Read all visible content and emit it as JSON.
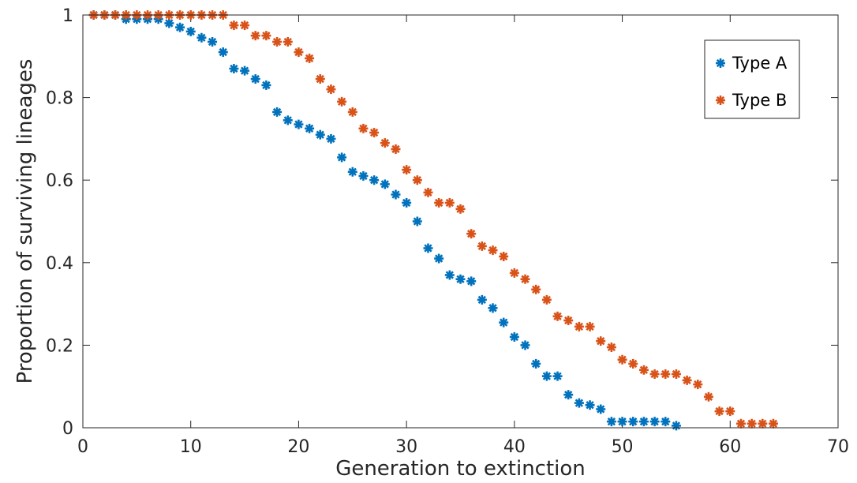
{
  "chart_data": {
    "type": "scatter",
    "title": "",
    "xlabel": "Generation to extinction",
    "ylabel": "Proportion of surviving lineages",
    "xlim": [
      0,
      70
    ],
    "ylim": [
      0,
      1
    ],
    "xticks": [
      0,
      10,
      20,
      30,
      40,
      50,
      60,
      70
    ],
    "xtick_labels": [
      "0",
      "10",
      "20",
      "30",
      "40",
      "50",
      "60",
      "70"
    ],
    "yticks": [
      0,
      0.2,
      0.4,
      0.6,
      0.8,
      1
    ],
    "ytick_labels": [
      "0",
      "0.2",
      "0.4",
      "0.6",
      "0.8",
      "1"
    ],
    "grid": false,
    "legend_position": "top-right",
    "marker": "*",
    "series": [
      {
        "name": "Type A",
        "color": "#0072BD",
        "points": [
          [
            1,
            1
          ],
          [
            2,
            1
          ],
          [
            3,
            1
          ],
          [
            4,
            0.99
          ],
          [
            5,
            0.99
          ],
          [
            6,
            0.99
          ],
          [
            7,
            0.99
          ],
          [
            8,
            0.98
          ],
          [
            9,
            0.97
          ],
          [
            10,
            0.96
          ],
          [
            11,
            0.945
          ],
          [
            12,
            0.935
          ],
          [
            13,
            0.91
          ],
          [
            14,
            0.87
          ],
          [
            15,
            0.865
          ],
          [
            16,
            0.845
          ],
          [
            17,
            0.83
          ],
          [
            18,
            0.765
          ],
          [
            19,
            0.745
          ],
          [
            20,
            0.735
          ],
          [
            21,
            0.725
          ],
          [
            22,
            0.71
          ],
          [
            23,
            0.7
          ],
          [
            24,
            0.655
          ],
          [
            25,
            0.62
          ],
          [
            26,
            0.61
          ],
          [
            27,
            0.6
          ],
          [
            28,
            0.59
          ],
          [
            29,
            0.565
          ],
          [
            30,
            0.545
          ],
          [
            31,
            0.5
          ],
          [
            32,
            0.435
          ],
          [
            33,
            0.41
          ],
          [
            34,
            0.37
          ],
          [
            35,
            0.36
          ],
          [
            36,
            0.355
          ],
          [
            37,
            0.31
          ],
          [
            38,
            0.29
          ],
          [
            39,
            0.255
          ],
          [
            40,
            0.22
          ],
          [
            41,
            0.2
          ],
          [
            42,
            0.155
          ],
          [
            43,
            0.125
          ],
          [
            44,
            0.125
          ],
          [
            45,
            0.08
          ],
          [
            46,
            0.06
          ],
          [
            47,
            0.055
          ],
          [
            48,
            0.045
          ],
          [
            49,
            0.015
          ],
          [
            50,
            0.015
          ],
          [
            51,
            0.015
          ],
          [
            52,
            0.015
          ],
          [
            53,
            0.015
          ],
          [
            54,
            0.015
          ],
          [
            55,
            0.005
          ]
        ]
      },
      {
        "name": "Type B",
        "color": "#D95319",
        "points": [
          [
            1,
            1
          ],
          [
            2,
            1
          ],
          [
            3,
            1
          ],
          [
            4,
            1
          ],
          [
            5,
            1
          ],
          [
            6,
            1
          ],
          [
            7,
            1
          ],
          [
            8,
            1
          ],
          [
            9,
            1
          ],
          [
            10,
            1
          ],
          [
            11,
            1
          ],
          [
            12,
            1
          ],
          [
            13,
            1
          ],
          [
            14,
            0.975
          ],
          [
            15,
            0.975
          ],
          [
            16,
            0.95
          ],
          [
            17,
            0.95
          ],
          [
            18,
            0.935
          ],
          [
            19,
            0.935
          ],
          [
            20,
            0.91
          ],
          [
            21,
            0.895
          ],
          [
            22,
            0.845
          ],
          [
            23,
            0.82
          ],
          [
            24,
            0.79
          ],
          [
            25,
            0.765
          ],
          [
            26,
            0.725
          ],
          [
            27,
            0.715
          ],
          [
            28,
            0.69
          ],
          [
            29,
            0.675
          ],
          [
            30,
            0.625
          ],
          [
            31,
            0.6
          ],
          [
            32,
            0.57
          ],
          [
            33,
            0.545
          ],
          [
            34,
            0.545
          ],
          [
            35,
            0.53
          ],
          [
            36,
            0.47
          ],
          [
            37,
            0.44
          ],
          [
            38,
            0.43
          ],
          [
            39,
            0.415
          ],
          [
            40,
            0.375
          ],
          [
            41,
            0.36
          ],
          [
            42,
            0.335
          ],
          [
            43,
            0.31
          ],
          [
            44,
            0.27
          ],
          [
            45,
            0.26
          ],
          [
            46,
            0.245
          ],
          [
            47,
            0.245
          ],
          [
            48,
            0.21
          ],
          [
            49,
            0.195
          ],
          [
            50,
            0.165
          ],
          [
            51,
            0.155
          ],
          [
            52,
            0.14
          ],
          [
            53,
            0.13
          ],
          [
            54,
            0.13
          ],
          [
            55,
            0.13
          ],
          [
            56,
            0.115
          ],
          [
            57,
            0.105
          ],
          [
            58,
            0.075
          ],
          [
            59,
            0.04
          ],
          [
            60,
            0.04
          ],
          [
            61,
            0.01
          ],
          [
            62,
            0.01
          ],
          [
            63,
            0.01
          ],
          [
            64,
            0.01
          ]
        ]
      }
    ]
  }
}
